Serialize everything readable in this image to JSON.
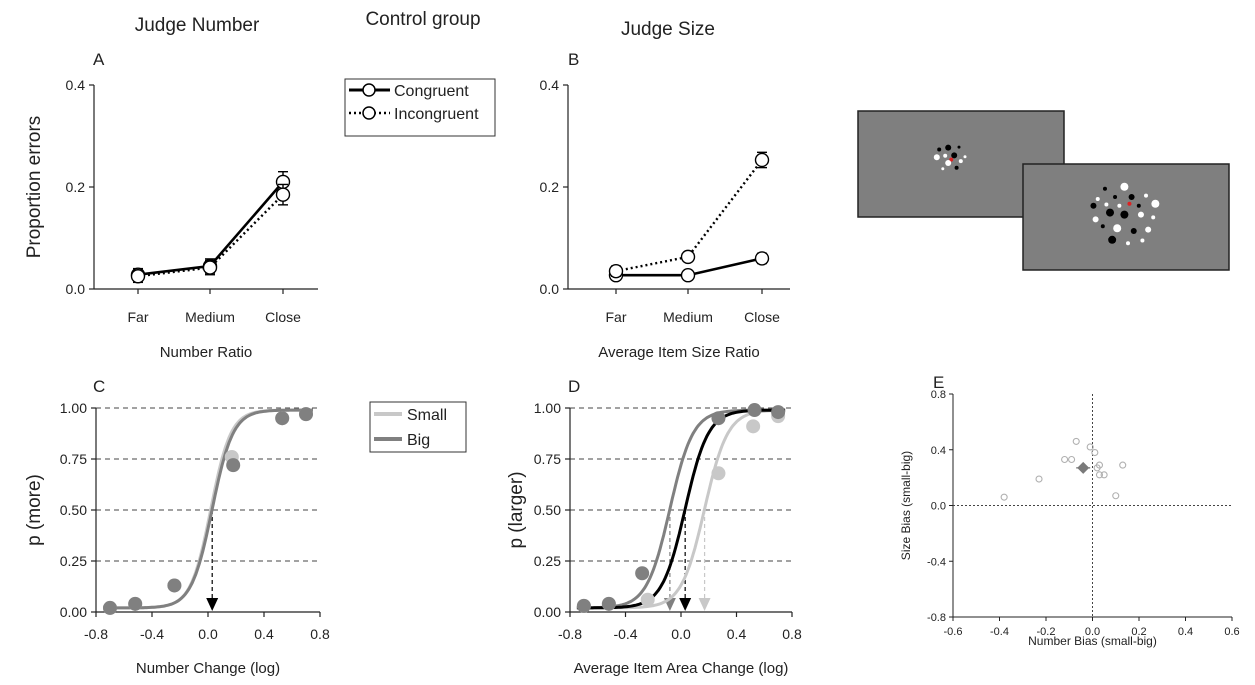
{
  "headers": {
    "left": "Judge Number",
    "center": "Control group",
    "right": "Judge Size"
  },
  "chart_data": [
    {
      "panel": "A",
      "type": "line",
      "categories": [
        "Far",
        "Medium",
        "Close"
      ],
      "xlabel": "Number Ratio",
      "ylabel": "Proportion errors",
      "ylim": [
        0,
        0.4
      ],
      "yticks": [
        "0.0",
        "0.2",
        "0.4"
      ],
      "series": [
        {
          "name": "Congruent",
          "values": [
            0.028,
            0.045,
            0.21
          ],
          "err": [
            0.012,
            0.014,
            0.02
          ],
          "style": "solid"
        },
        {
          "name": "Incongruent",
          "values": [
            0.025,
            0.042,
            0.185
          ],
          "err": [
            0.012,
            0.014,
            0.02
          ],
          "style": "dotted"
        }
      ]
    },
    {
      "panel": "B",
      "type": "line",
      "categories": [
        "Far",
        "Medium",
        "Close"
      ],
      "xlabel": "Average Item Size Ratio",
      "ylabel": "",
      "ylim": [
        0,
        0.4
      ],
      "yticks": [
        "0.0",
        "0.2",
        "0.4"
      ],
      "series": [
        {
          "name": "Congruent",
          "values": [
            0.027,
            0.027,
            0.06
          ],
          "err": [
            0.008,
            0.006,
            0.01
          ],
          "style": "solid"
        },
        {
          "name": "Incongruent",
          "values": [
            0.035,
            0.063,
            0.253
          ],
          "err": [
            0.01,
            0.009,
            0.015
          ],
          "style": "dotted"
        }
      ]
    },
    {
      "panel": "C",
      "type": "line",
      "xlabel": "Number Change (log)",
      "ylabel": "p (more)",
      "xlim": [
        -0.8,
        0.8
      ],
      "ylim": [
        0,
        1
      ],
      "xticks": [
        "-0.8",
        "-0.4",
        "0.0",
        "0.4",
        "0.8"
      ],
      "yticks": [
        "0.00",
        "0.25",
        "0.50",
        "0.75",
        "1.00"
      ],
      "gridlines_y": [
        0.25,
        0.5,
        0.75,
        1.0
      ],
      "pse_arrow_x": 0.03,
      "series": [
        {
          "name": "Small",
          "color": "#c8c8c8",
          "x": [
            -0.7,
            -0.52,
            -0.24,
            0.17,
            0.53,
            0.7
          ],
          "y": [
            0.02,
            0.04,
            0.13,
            0.76,
            0.95,
            0.97
          ],
          "pse": 0.02,
          "slope": 14
        },
        {
          "name": "Big",
          "color": "#808080",
          "x": [
            -0.7,
            -0.52,
            -0.24,
            0.18,
            0.53,
            0.7
          ],
          "y": [
            0.02,
            0.04,
            0.13,
            0.72,
            0.95,
            0.97
          ],
          "pse": 0.03,
          "slope": 13.5
        }
      ]
    },
    {
      "panel": "D",
      "type": "line",
      "xlabel": "Average Item Area Change (log)",
      "ylabel": "p (larger)",
      "xlim": [
        -0.8,
        0.8
      ],
      "ylim": [
        0,
        1
      ],
      "xticks": [
        "-0.8",
        "-0.4",
        "0.0",
        "0.4",
        "0.8"
      ],
      "yticks": [
        "0.00",
        "0.25",
        "0.50",
        "0.75",
        "1.00"
      ],
      "gridlines_y": [
        0.25,
        0.5,
        0.75,
        1.0
      ],
      "series": [
        {
          "name": "Small",
          "color": "#c8c8c8",
          "x": [
            -0.7,
            -0.52,
            -0.24,
            0.27,
            0.52,
            0.7
          ],
          "y": [
            0.03,
            0.04,
            0.06,
            0.68,
            0.91,
            0.96
          ],
          "pse": 0.17,
          "slope": 12
        },
        {
          "name": "Big",
          "color": "#808080",
          "x": [
            -0.7,
            -0.52,
            -0.28,
            0.27,
            0.53,
            0.7
          ],
          "y": [
            0.03,
            0.04,
            0.19,
            0.95,
            0.99,
            0.98
          ],
          "pse": -0.08,
          "slope": 12
        },
        {
          "name": "",
          "color": "#000000",
          "x": [],
          "y": [],
          "pse": 0.03,
          "slope": 12
        }
      ]
    },
    {
      "panel": "E",
      "type": "scatter",
      "xlabel": "Number Bias (small-big)",
      "ylabel": "Size Bias (small-big)",
      "xlim": [
        -0.6,
        0.6
      ],
      "ylim": [
        -0.8,
        0.8
      ],
      "xticks": [
        "-0.6",
        "-0.4",
        "-0.2",
        "0.0",
        "0.2",
        "0.4",
        "0.6"
      ],
      "yticks": [
        "-0.8",
        "-0.4",
        "0.0",
        "0.4",
        "0.8"
      ],
      "points": [
        {
          "x": -0.38,
          "y": 0.06
        },
        {
          "x": -0.23,
          "y": 0.19
        },
        {
          "x": -0.12,
          "y": 0.33
        },
        {
          "x": -0.09,
          "y": 0.33
        },
        {
          "x": -0.07,
          "y": 0.46
        },
        {
          "x": -0.01,
          "y": 0.42
        },
        {
          "x": 0.01,
          "y": 0.38
        },
        {
          "x": 0.02,
          "y": 0.27
        },
        {
          "x": 0.03,
          "y": 0.29
        },
        {
          "x": 0.03,
          "y": 0.22
        },
        {
          "x": 0.05,
          "y": 0.22
        },
        {
          "x": 0.1,
          "y": 0.07
        },
        {
          "x": 0.13,
          "y": 0.29
        }
      ],
      "mean": {
        "x": -0.04,
        "y": 0.27,
        "xerr": 0.03,
        "yerr": 0.03
      }
    }
  ],
  "legends": {
    "top": [
      {
        "label": "Congruent",
        "style": "solid"
      },
      {
        "label": "Incongruent",
        "style": "dotted"
      }
    ],
    "bottom": [
      {
        "label": "Small",
        "color": "#c8c8c8"
      },
      {
        "label": "Big",
        "color": "#808080"
      }
    ]
  },
  "stimulus": {
    "background": "#7f7f7f",
    "dots_small_screen": [
      {
        "fx": 0.12,
        "fy": 0.22,
        "r": 2,
        "c": "#000"
      },
      {
        "fx": 0.27,
        "fy": 0.18,
        "r": 3,
        "c": "#000"
      },
      {
        "fx": 0.45,
        "fy": 0.17,
        "r": 1.5,
        "c": "#000"
      },
      {
        "fx": 0.08,
        "fy": 0.38,
        "r": 3,
        "c": "#fff"
      },
      {
        "fx": 0.22,
        "fy": 0.35,
        "r": 2,
        "c": "#fff"
      },
      {
        "fx": 0.37,
        "fy": 0.34,
        "r": 3,
        "c": "#000"
      },
      {
        "fx": 0.32,
        "fy": 0.43,
        "r": 2,
        "c": "#d22"
      },
      {
        "fx": 0.55,
        "fy": 0.37,
        "r": 1.5,
        "c": "#fff"
      },
      {
        "fx": 0.48,
        "fy": 0.46,
        "r": 2,
        "c": "#fff"
      },
      {
        "fx": 0.27,
        "fy": 0.5,
        "r": 3,
        "c": "#fff"
      },
      {
        "fx": 0.18,
        "fy": 0.62,
        "r": 1.5,
        "c": "#fff"
      },
      {
        "fx": 0.41,
        "fy": 0.6,
        "r": 2,
        "c": "#000"
      }
    ],
    "dots_large_screen": [
      {
        "fx": 0.18,
        "fy": 0.1,
        "r": 2,
        "c": "#000"
      },
      {
        "fx": 0.45,
        "fy": 0.07,
        "r": 4,
        "c": "#fff"
      },
      {
        "fx": 0.08,
        "fy": 0.25,
        "r": 2,
        "c": "#fff"
      },
      {
        "fx": 0.32,
        "fy": 0.22,
        "r": 2,
        "c": "#000"
      },
      {
        "fx": 0.55,
        "fy": 0.22,
        "r": 3,
        "c": "#000"
      },
      {
        "fx": 0.75,
        "fy": 0.2,
        "r": 2,
        "c": "#fff"
      },
      {
        "fx": 0.02,
        "fy": 0.35,
        "r": 3,
        "c": "#000"
      },
      {
        "fx": 0.2,
        "fy": 0.33,
        "r": 2,
        "c": "#fff"
      },
      {
        "fx": 0.38,
        "fy": 0.35,
        "r": 2,
        "c": "#fff"
      },
      {
        "fx": 0.52,
        "fy": 0.32,
        "r": 2,
        "c": "#d22"
      },
      {
        "fx": 0.65,
        "fy": 0.35,
        "r": 2,
        "c": "#000"
      },
      {
        "fx": 0.88,
        "fy": 0.32,
        "r": 4,
        "c": "#fff"
      },
      {
        "fx": 0.25,
        "fy": 0.45,
        "r": 4,
        "c": "#000"
      },
      {
        "fx": 0.45,
        "fy": 0.48,
        "r": 4,
        "c": "#000"
      },
      {
        "fx": 0.68,
        "fy": 0.48,
        "r": 3,
        "c": "#fff"
      },
      {
        "fx": 0.85,
        "fy": 0.52,
        "r": 2,
        "c": "#fff"
      },
      {
        "fx": 0.05,
        "fy": 0.55,
        "r": 3,
        "c": "#fff"
      },
      {
        "fx": 0.15,
        "fy": 0.65,
        "r": 2,
        "c": "#000"
      },
      {
        "fx": 0.35,
        "fy": 0.68,
        "r": 4,
        "c": "#fff"
      },
      {
        "fx": 0.58,
        "fy": 0.72,
        "r": 3,
        "c": "#000"
      },
      {
        "fx": 0.78,
        "fy": 0.7,
        "r": 3,
        "c": "#fff"
      },
      {
        "fx": 0.28,
        "fy": 0.85,
        "r": 4,
        "c": "#000"
      },
      {
        "fx": 0.5,
        "fy": 0.9,
        "r": 2,
        "c": "#fff"
      },
      {
        "fx": 0.7,
        "fy": 0.86,
        "r": 2,
        "c": "#fff"
      }
    ]
  }
}
